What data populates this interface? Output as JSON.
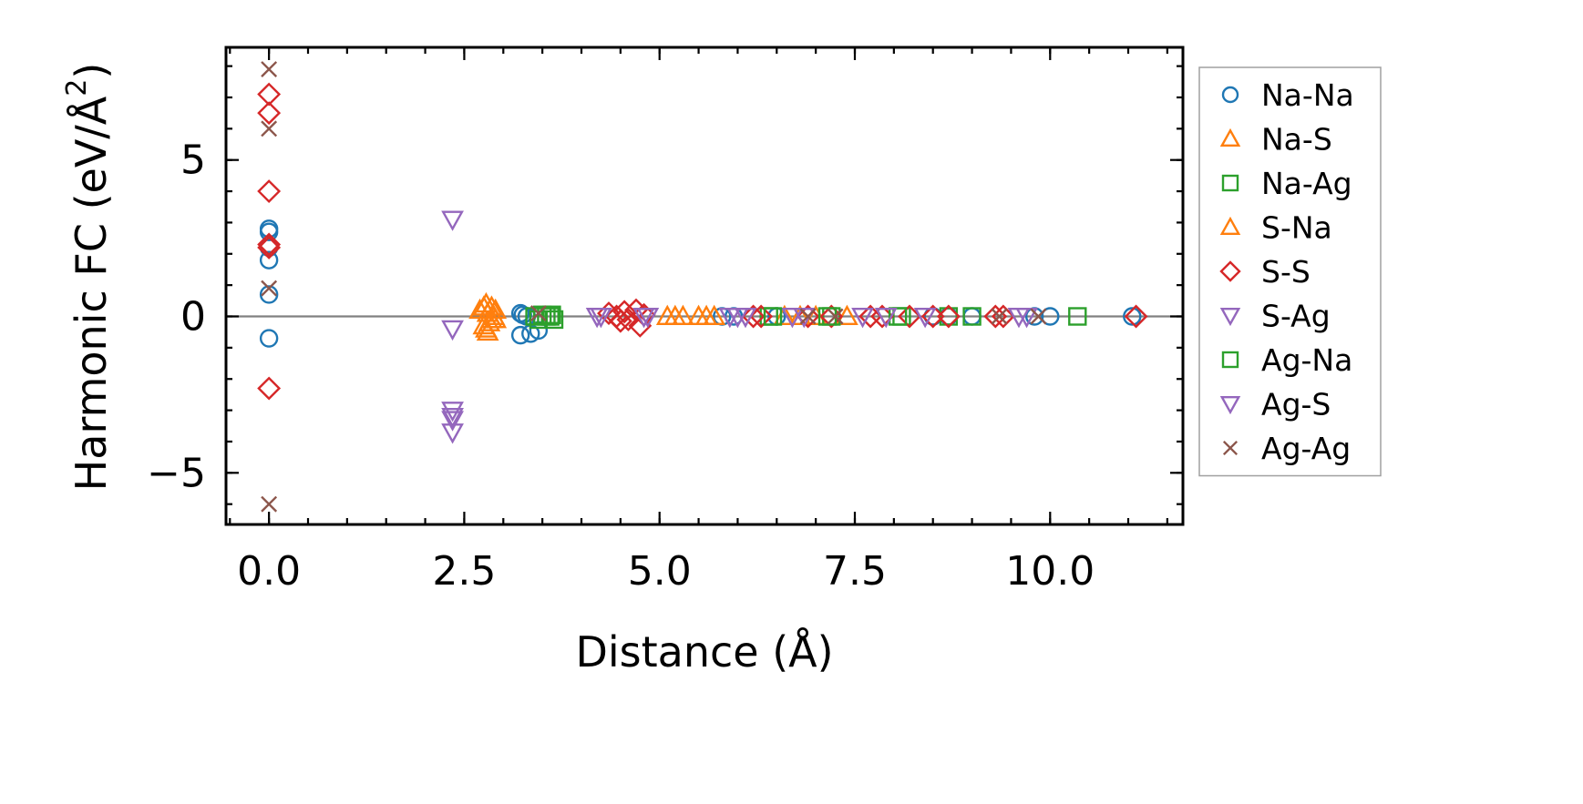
{
  "chart_data": {
    "type": "scatter",
    "xlabel": "Distance (Å)",
    "ylabel_main": "Harmonic FC (eV/Å",
    "ylabel_sup": "2",
    "ylabel_close": ")",
    "xlim": [
      -0.55,
      11.7
    ],
    "ylim": [
      -6.65,
      8.6
    ],
    "x_ticks": [
      0.0,
      2.5,
      5.0,
      7.5,
      10.0
    ],
    "x_tick_labels": [
      "0.0",
      "2.5",
      "5.0",
      "7.5",
      "10.0"
    ],
    "y_ticks": [
      -5,
      0,
      5
    ],
    "y_tick_labels": [
      "−5",
      "0",
      "5"
    ],
    "x_minor_step": 0.5,
    "y_minor_step": 1,
    "zero_line": true,
    "grid": false,
    "legend_position": "outside-right",
    "series": [
      {
        "name": "Na-Na",
        "marker": "circle",
        "color": "#1f77b4",
        "points": [
          [
            0,
            2.8
          ],
          [
            0,
            2.7
          ],
          [
            0,
            2.2
          ],
          [
            0,
            1.8
          ],
          [
            0,
            0.7
          ],
          [
            0,
            -0.7
          ],
          [
            3.22,
            0.1
          ],
          [
            3.25,
            0.05
          ],
          [
            3.22,
            -0.6
          ],
          [
            3.35,
            -0.55
          ],
          [
            3.45,
            -0.45
          ],
          [
            3.3,
            0.0
          ],
          [
            5.8,
            0.0
          ],
          [
            5.95,
            0.0
          ],
          [
            6.5,
            0.0
          ],
          [
            8.5,
            0.0
          ],
          [
            8.7,
            0.0
          ],
          [
            9.0,
            0.0
          ],
          [
            9.8,
            0.0
          ],
          [
            10.0,
            0.0
          ],
          [
            11.05,
            0.0
          ]
        ]
      },
      {
        "name": "Na-S",
        "marker": "triangle-up",
        "color": "#ff7f0e",
        "points": [
          [
            2.75,
            0.3
          ],
          [
            2.8,
            0.1
          ],
          [
            2.85,
            -0.1
          ],
          [
            2.75,
            -0.3
          ],
          [
            2.8,
            -0.5
          ],
          [
            2.9,
            0.2
          ],
          [
            2.78,
            0.4
          ],
          [
            2.82,
            -0.2
          ],
          [
            2.88,
            0.0
          ],
          [
            5.1,
            0.0
          ],
          [
            5.3,
            0.0
          ],
          [
            5.5,
            0.0
          ],
          [
            5.7,
            0.0
          ],
          [
            6.6,
            0.0
          ],
          [
            7.0,
            0.0
          ],
          [
            7.4,
            0.0
          ]
        ]
      },
      {
        "name": "Na-Ag",
        "marker": "square",
        "color": "#2ca02c",
        "points": [
          [
            3.4,
            0.0
          ],
          [
            3.45,
            -0.1
          ],
          [
            3.5,
            0.05
          ],
          [
            3.6,
            0.0
          ],
          [
            3.65,
            -0.1
          ],
          [
            6.4,
            0.0
          ],
          [
            7.2,
            0.0
          ],
          [
            8.1,
            0.0
          ],
          [
            8.7,
            0.0
          ],
          [
            9.0,
            0.0
          ],
          [
            10.35,
            0.0
          ]
        ]
      },
      {
        "name": "S-Na",
        "marker": "triangle-up",
        "color": "#ff7f0e",
        "points": [
          [
            2.7,
            0.2
          ],
          [
            2.78,
            -0.4
          ],
          [
            2.85,
            0.3
          ],
          [
            2.9,
            -0.1
          ],
          [
            5.2,
            0.0
          ],
          [
            5.6,
            0.0
          ],
          [
            6.8,
            0.0
          ]
        ]
      },
      {
        "name": "S-S",
        "marker": "diamond",
        "color": "#d62728",
        "points": [
          [
            0,
            7.1
          ],
          [
            0,
            6.5
          ],
          [
            0,
            4.0
          ],
          [
            0,
            2.3
          ],
          [
            0,
            2.2
          ],
          [
            0,
            -2.3
          ],
          [
            4.35,
            0.1
          ],
          [
            4.45,
            0.0
          ],
          [
            4.55,
            0.15
          ],
          [
            4.6,
            -0.1
          ],
          [
            4.7,
            0.2
          ],
          [
            4.75,
            -0.3
          ],
          [
            4.8,
            0.05
          ],
          [
            4.5,
            -0.15
          ],
          [
            6.2,
            0.0
          ],
          [
            6.3,
            0.0
          ],
          [
            6.9,
            0.0
          ],
          [
            7.2,
            0.0
          ],
          [
            7.7,
            0.0
          ],
          [
            7.85,
            0.0
          ],
          [
            8.2,
            0.0
          ],
          [
            8.5,
            0.0
          ],
          [
            8.7,
            0.0
          ],
          [
            9.3,
            0.0
          ],
          [
            9.4,
            0.0
          ],
          [
            11.1,
            0.0
          ]
        ]
      },
      {
        "name": "S-Ag",
        "marker": "triangle-down",
        "color": "#9467bd",
        "points": [
          [
            2.35,
            3.1
          ],
          [
            2.35,
            -0.4
          ],
          [
            2.35,
            -3.0
          ],
          [
            2.35,
            -3.3
          ],
          [
            2.35,
            -3.7
          ],
          [
            4.2,
            0.0
          ],
          [
            4.8,
            0.0
          ],
          [
            5.9,
            0.0
          ],
          [
            6.1,
            0.0
          ],
          [
            6.7,
            0.0
          ],
          [
            7.6,
            0.0
          ],
          [
            8.4,
            0.0
          ],
          [
            9.6,
            0.0
          ]
        ]
      },
      {
        "name": "Ag-Na",
        "marker": "square",
        "color": "#2ca02c",
        "points": [
          [
            3.55,
            0.0
          ],
          [
            3.62,
            0.05
          ],
          [
            6.45,
            0.0
          ],
          [
            7.15,
            0.0
          ],
          [
            8.05,
            0.0
          ]
        ]
      },
      {
        "name": "Ag-S",
        "marker": "triangle-down",
        "color": "#9467bd",
        "points": [
          [
            2.35,
            -3.2
          ],
          [
            4.25,
            0.0
          ],
          [
            4.85,
            0.0
          ],
          [
            6.0,
            0.0
          ],
          [
            6.85,
            0.0
          ],
          [
            7.9,
            0.0
          ],
          [
            9.7,
            0.0
          ]
        ]
      },
      {
        "name": "Ag-Ag",
        "marker": "x",
        "color": "#8c564b",
        "points": [
          [
            0,
            7.9
          ],
          [
            0,
            6.0
          ],
          [
            0,
            0.9
          ],
          [
            0,
            -6.0
          ],
          [
            3.45,
            0.1
          ],
          [
            6.9,
            0.0
          ],
          [
            7.25,
            0.0
          ],
          [
            9.35,
            0.0
          ],
          [
            9.85,
            0.0
          ]
        ]
      }
    ]
  }
}
